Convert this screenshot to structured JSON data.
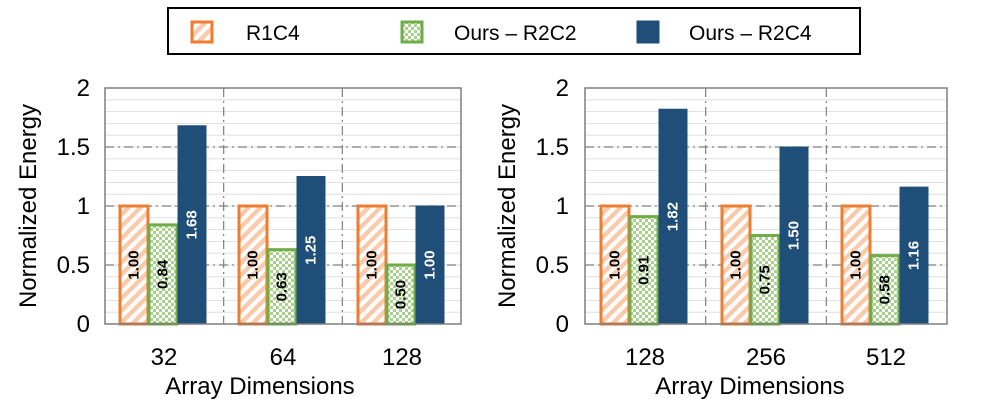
{
  "legend": [
    {
      "name": "R1C4",
      "style": "hatch-orange"
    },
    {
      "name": "Ours – R2C2",
      "style": "check-green"
    },
    {
      "name": "Ours – R2C4",
      "style": "solid-navy"
    }
  ],
  "colors": {
    "r1c4_stroke": "#ED7D31",
    "r1c4_hatch": "#F8CBAD",
    "r2c2_stroke": "#70AD47",
    "r2c2_check": "#A9D18E",
    "r2c4_fill": "#1F4E79",
    "grid_major": "#7F7F7F",
    "grid_minor": "#D9D9D9",
    "text": "#000000"
  },
  "chart_data": [
    {
      "type": "bar",
      "xlabel": "Array Dimensions",
      "ylabel": "Normalized Energy",
      "ylim": [
        0,
        2
      ],
      "yticks": [
        "0",
        "0.5",
        "1",
        "1.5",
        "2"
      ],
      "categories": [
        "32",
        "64",
        "128"
      ],
      "series": [
        {
          "name": "R1C4",
          "values": [
            1.0,
            1.0,
            1.0
          ],
          "labels": [
            "1.00",
            "1.00",
            "1.00"
          ]
        },
        {
          "name": "Ours – R2C2",
          "values": [
            0.84,
            0.63,
            0.5
          ],
          "labels": [
            "0.84",
            "0.63",
            "0.50"
          ]
        },
        {
          "name": "Ours – R2C4",
          "values": [
            1.68,
            1.25,
            1.0
          ],
          "labels": [
            "1.68",
            "1.25",
            "1.00"
          ]
        }
      ]
    },
    {
      "type": "bar",
      "xlabel": "Array Dimensions",
      "ylabel": "Normalized Energy",
      "ylim": [
        0,
        2
      ],
      "yticks": [
        "0",
        "0.5",
        "1",
        "1.5",
        "2"
      ],
      "categories": [
        "128",
        "256",
        "512"
      ],
      "series": [
        {
          "name": "R1C4",
          "values": [
            1.0,
            1.0,
            1.0
          ],
          "labels": [
            "1.00",
            "1.00",
            "1.00"
          ]
        },
        {
          "name": "Ours – R2C2",
          "values": [
            0.91,
            0.75,
            0.58
          ],
          "labels": [
            "0.91",
            "0.75",
            "0.58"
          ]
        },
        {
          "name": "Ours – R2C4",
          "values": [
            1.82,
            1.5,
            1.16
          ],
          "labels": [
            "1.82",
            "1.50",
            "1.16"
          ]
        }
      ]
    }
  ]
}
